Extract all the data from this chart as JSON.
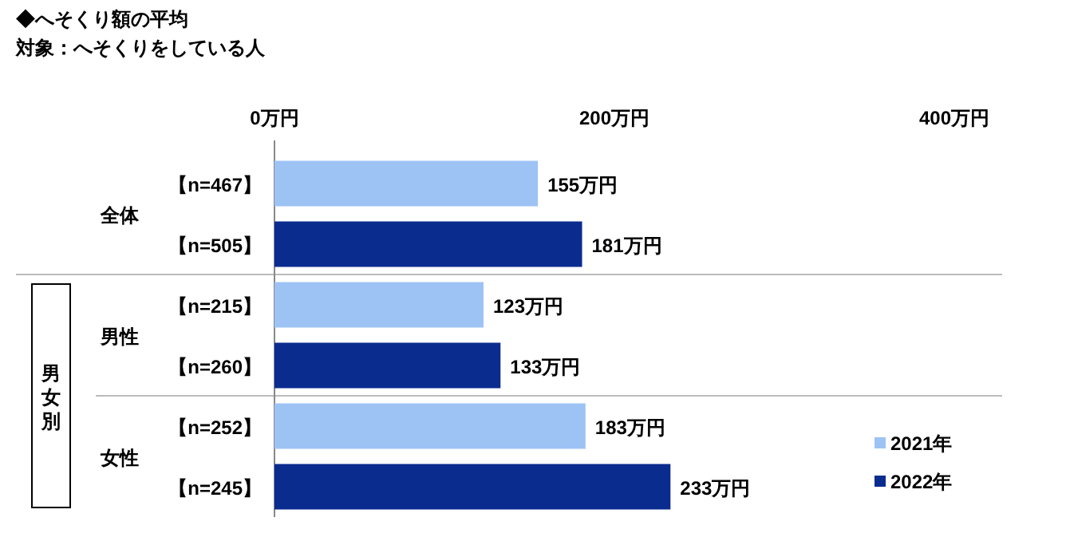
{
  "chart_data": {
    "type": "bar",
    "orientation": "horizontal",
    "title": "◆へそくり額の平均",
    "subtitle": "対象：へそくりをしている人",
    "categories": [
      "【n=467】",
      "【n=505】",
      "【n=215】",
      "【n=260】",
      "【n=252】",
      "【n=245】"
    ],
    "series": [
      {
        "name": "2021年",
        "color": "#9dc3f5",
        "values": [
          155,
          null,
          123,
          null,
          183,
          null
        ],
        "value_labels": [
          "155万円",
          null,
          "123万円",
          null,
          "183万円",
          null
        ]
      },
      {
        "name": "2022年",
        "color": "#0b2c8f",
        "values": [
          null,
          181,
          null,
          133,
          null,
          233
        ],
        "value_labels": [
          null,
          "181万円",
          null,
          "133万円",
          null,
          "233万円"
        ]
      }
    ],
    "xlim": [
      0,
      400
    ],
    "xticks": [
      {
        "value": 0,
        "label": "0万円"
      },
      {
        "value": 200,
        "label": "200万円"
      },
      {
        "value": 400,
        "label": "400万円"
      }
    ],
    "annotations": [
      "全体",
      "男性",
      "女性",
      "男女別"
    ],
    "legend": "bottom right",
    "grid": false
  }
}
